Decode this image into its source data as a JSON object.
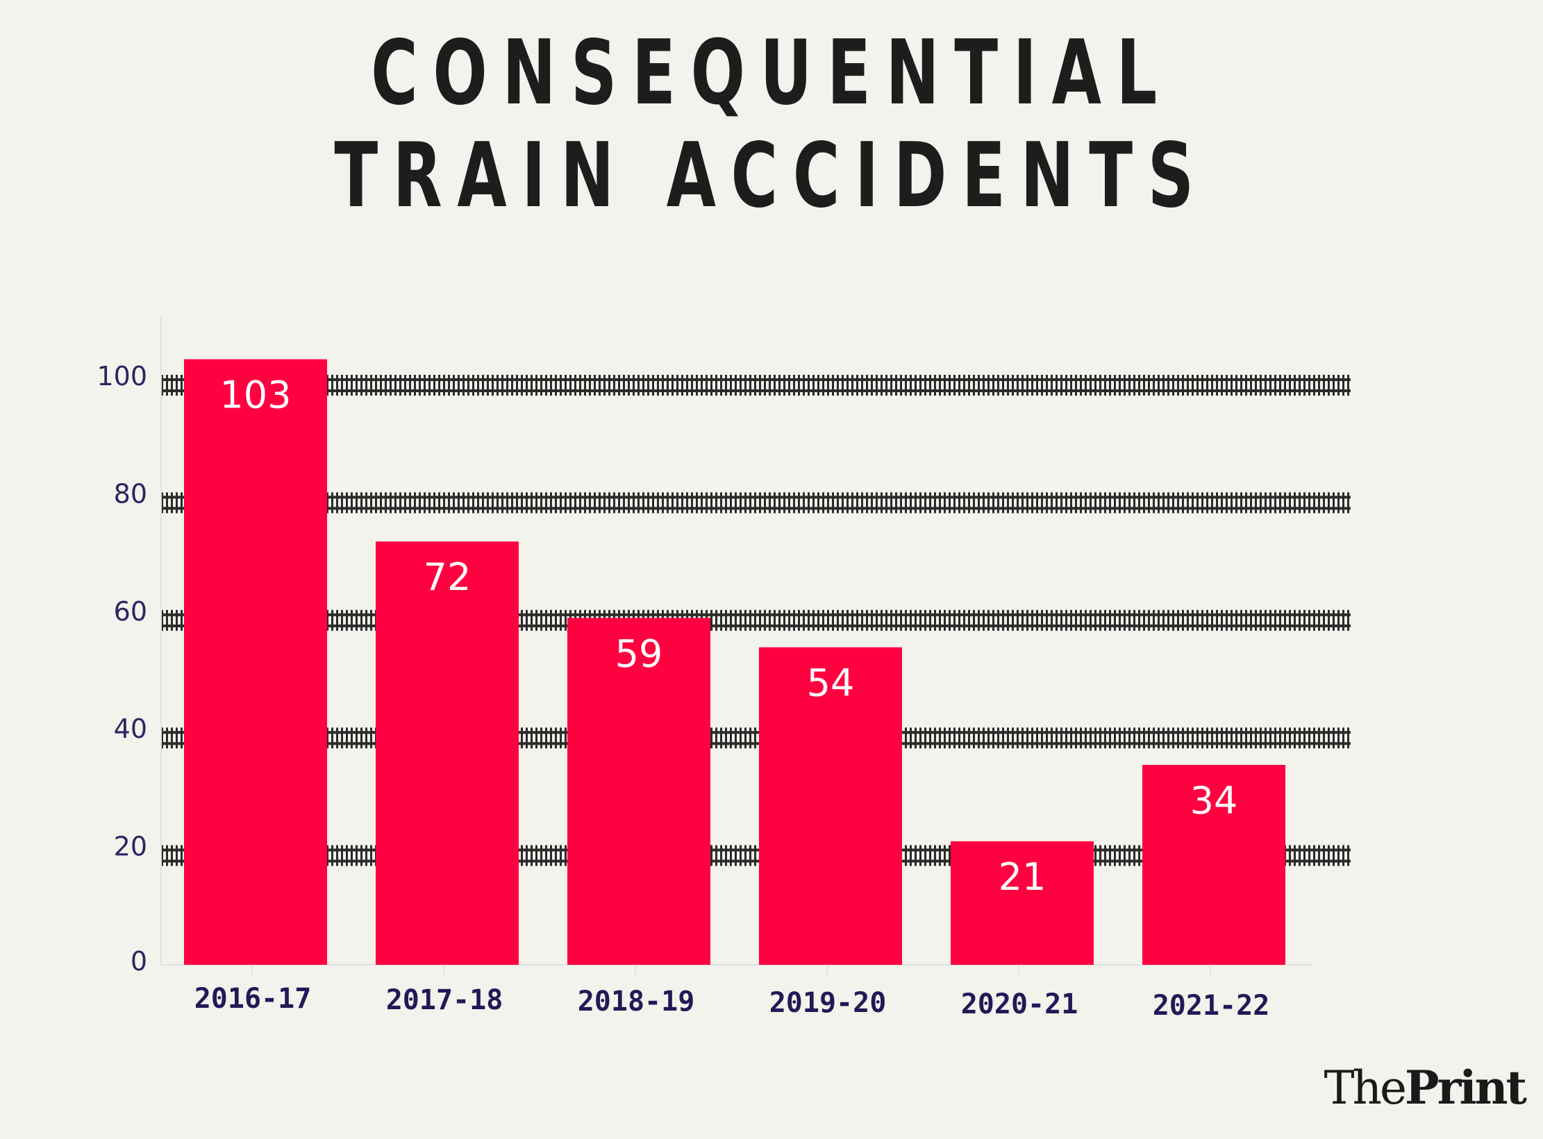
{
  "title": {
    "line1": "CONSEQUENTIAL",
    "line2": "TRAIN ACCIDENTS"
  },
  "logo": {
    "the": "The",
    "print": "Print"
  },
  "colors": {
    "bar": "#ff0040",
    "track": "#2b2b2b",
    "axis_text": "#2a2660",
    "background": "#f3f2ec"
  },
  "chart_data": {
    "type": "bar",
    "title": "CONSEQUENTIAL TRAIN ACCIDENTS",
    "xlabel": "",
    "ylabel": "",
    "categories": [
      "2016-17",
      "2017-18",
      "2018-19",
      "2019-20",
      "2020-21",
      "2021-22"
    ],
    "values": [
      103,
      72,
      59,
      54,
      21,
      34
    ],
    "data_labels": [
      "103",
      "72",
      "59",
      "54",
      "21",
      "34"
    ],
    "yticks": [
      0,
      20,
      40,
      60,
      80,
      100
    ],
    "ytick_labels": [
      "0",
      "20",
      "40",
      "60",
      "80",
      "100"
    ],
    "ylim": [
      0,
      110
    ],
    "grid": true,
    "legend": "none"
  }
}
